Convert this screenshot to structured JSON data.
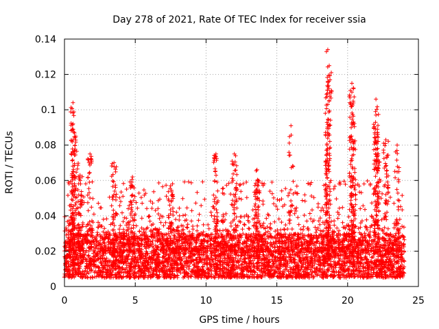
{
  "chart_data": {
    "type": "scatter",
    "title": "Day 278 of 2021, Rate Of TEC Index for receiver ssia",
    "xlabel": "GPS time / hours",
    "ylabel": "ROTI / TECUs",
    "xlim": [
      0,
      25
    ],
    "ylim": [
      0,
      0.14
    ],
    "x_ticks": [
      0,
      5,
      10,
      15,
      20,
      25
    ],
    "x_tick_labels": [
      "0",
      "5",
      "10",
      "15",
      "20",
      "25"
    ],
    "y_ticks": [
      0,
      0.02,
      0.04,
      0.06,
      0.08,
      0.1,
      0.12,
      0.14
    ],
    "y_tick_labels": [
      "0",
      "0.02",
      "0.04",
      "0.06",
      "0.08",
      "0.1",
      "0.12",
      "0.14"
    ],
    "grid": true,
    "marker": "plus",
    "color": "#ff0000",
    "series": [
      {
        "name": "ROTI",
        "note": "dense scatter; representative envelope of observed values (hours, TECU/min)",
        "baseline": {
          "x_range": [
            0,
            24
          ],
          "y_range": [
            0.005,
            0.03
          ]
        },
        "peaks": [
          {
            "x": 0.6,
            "y": 0.104
          },
          {
            "x": 0.6,
            "y": 0.092
          },
          {
            "x": 0.8,
            "y": 0.085
          },
          {
            "x": 1.1,
            "y": 0.063
          },
          {
            "x": 1.8,
            "y": 0.075
          },
          {
            "x": 3.5,
            "y": 0.07
          },
          {
            "x": 4.8,
            "y": 0.062
          },
          {
            "x": 7.5,
            "y": 0.057
          },
          {
            "x": 10.7,
            "y": 0.075
          },
          {
            "x": 12.0,
            "y": 0.075
          },
          {
            "x": 13.6,
            "y": 0.066
          },
          {
            "x": 16.0,
            "y": 0.091
          },
          {
            "x": 18.6,
            "y": 0.134
          },
          {
            "x": 18.7,
            "y": 0.125
          },
          {
            "x": 18.6,
            "y": 0.113
          },
          {
            "x": 18.6,
            "y": 0.103
          },
          {
            "x": 20.3,
            "y": 0.115
          },
          {
            "x": 20.3,
            "y": 0.11
          },
          {
            "x": 20.4,
            "y": 0.093
          },
          {
            "x": 22.0,
            "y": 0.106
          },
          {
            "x": 22.0,
            "y": 0.097
          },
          {
            "x": 22.1,
            "y": 0.089
          },
          {
            "x": 22.7,
            "y": 0.083
          },
          {
            "x": 23.5,
            "y": 0.08
          }
        ]
      }
    ]
  }
}
